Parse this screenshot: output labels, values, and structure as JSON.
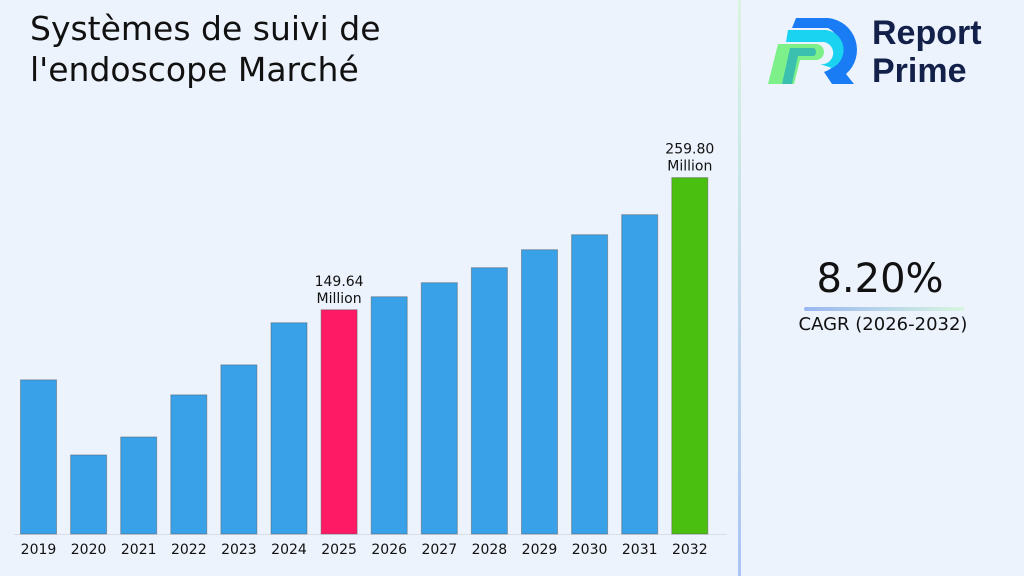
{
  "title": "Systèmes de suivi de l'endoscope Marché",
  "logo": {
    "line1": "Report",
    "line2": "Prime"
  },
  "cagr": {
    "value": "8.20%",
    "label": "CAGR (2026-2032)"
  },
  "colors": {
    "default_bar": "#38a1e8",
    "highlight_2025": "#ff1a66",
    "highlight_2032": "#4bbf10"
  },
  "chart_data": {
    "type": "bar",
    "categories": [
      "2019",
      "2020",
      "2021",
      "2022",
      "2023",
      "2024",
      "2025",
      "2026",
      "2027",
      "2028",
      "2029",
      "2030",
      "2031",
      "2032"
    ],
    "values": [
      91.2,
      28.6,
      43.6,
      78.7,
      103.7,
      138.8,
      149.64,
      160.5,
      172.2,
      184.7,
      199.7,
      212.2,
      228.9,
      259.8
    ],
    "data_labels": {
      "2025": [
        "149.64",
        "Million"
      ],
      "2032": [
        "259.80",
        "Million"
      ]
    },
    "xlabel": "",
    "ylabel": "",
    "ylim": [
      -37.3,
      287
    ],
    "grid": false
  }
}
